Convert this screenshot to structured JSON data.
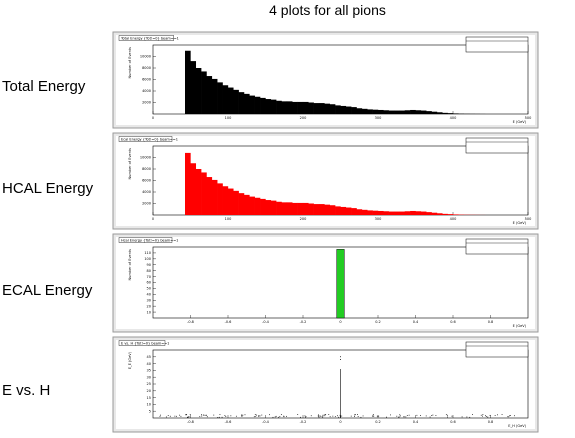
{
  "page": {
    "title": "4 plots for all pions",
    "labels": [
      "Total Energy",
      "HCAL Energy",
      "ECAL Energy",
      "E vs. H"
    ]
  },
  "chart_data": [
    {
      "type": "bar",
      "title": "Total Energy {Tot!=0} beam==1",
      "xlabel": "E (GeV)",
      "ylabel": "Number of Events",
      "color": "#000000",
      "yticks": [
        2000,
        4000,
        6000,
        8000,
        10000
      ],
      "ylim": [
        0,
        12000
      ],
      "xlim": [
        0,
        500
      ],
      "xticks": [
        0,
        100,
        200,
        300,
        400,
        500
      ],
      "values": [
        11000,
        9200,
        8000,
        7400,
        6600,
        6100,
        5500,
        5000,
        4600,
        4200,
        3800,
        3500,
        3200,
        3000,
        2800,
        2600,
        2500,
        2300,
        2200,
        2200,
        2100,
        2100,
        2100,
        2000,
        1900,
        1900,
        1800,
        1700,
        1500,
        1400,
        1300,
        1200,
        1000,
        900,
        800,
        750,
        700,
        650,
        600,
        600,
        600,
        650,
        700,
        650,
        600,
        500,
        400,
        300,
        200,
        150,
        100,
        60,
        40,
        30,
        20,
        10
      ]
    },
    {
      "type": "bar",
      "title": "Ecal Energy {Tot!=0} beam==1",
      "xlabel": "E (GeV)",
      "ylabel": "Number of Events",
      "color": "#ff0000",
      "yticks": [
        2000,
        4000,
        6000,
        8000,
        10000
      ],
      "ylim": [
        0,
        12000
      ],
      "xlim": [
        0,
        500
      ],
      "xticks": [
        0,
        100,
        200,
        300,
        400,
        500
      ],
      "values": [
        10800,
        9000,
        8000,
        7400,
        6600,
        6100,
        5500,
        5000,
        4600,
        4200,
        3800,
        3500,
        3200,
        3000,
        2800,
        2600,
        2500,
        2300,
        2200,
        2200,
        2100,
        2100,
        2100,
        2000,
        1900,
        1900,
        1800,
        1700,
        1500,
        1400,
        1300,
        1200,
        1000,
        900,
        800,
        750,
        700,
        650,
        600,
        600,
        600,
        650,
        700,
        650,
        600,
        500,
        400,
        300,
        200,
        150,
        100,
        60,
        40,
        30,
        20,
        10
      ]
    },
    {
      "type": "bar",
      "title": "Hcal Energy {Tot!=0} beam==1",
      "xlabel": "E (GeV)",
      "ylabel": "Number of Events",
      "color": "#22cc22",
      "ylim": [
        0,
        120
      ],
      "yticks": [
        10,
        20,
        30,
        40,
        50,
        60,
        70,
        80,
        90,
        100,
        110
      ],
      "xlim": [
        -1,
        1
      ],
      "xticks": [
        -0.8,
        -0.6,
        -0.4,
        -0.2,
        0,
        0.2,
        0.4,
        0.6,
        0.8
      ],
      "bin": {
        "center": 0.0,
        "width": 0.04,
        "value": 116
      }
    },
    {
      "type": "scatter",
      "title": "E vs. H {Tot!=0} beam==1",
      "xlabel": "E_H (GeV)",
      "ylabel": "E_E (GeV)",
      "ylim": [
        0,
        50
      ],
      "yticks": [
        5,
        10,
        15,
        20,
        25,
        30,
        35,
        40,
        45
      ],
      "xlim": [
        -1,
        1
      ],
      "xticks": [
        -0.8,
        -0.6,
        -0.4,
        -0.2,
        0,
        0.2,
        0.4,
        0.6,
        0.8
      ]
    }
  ]
}
